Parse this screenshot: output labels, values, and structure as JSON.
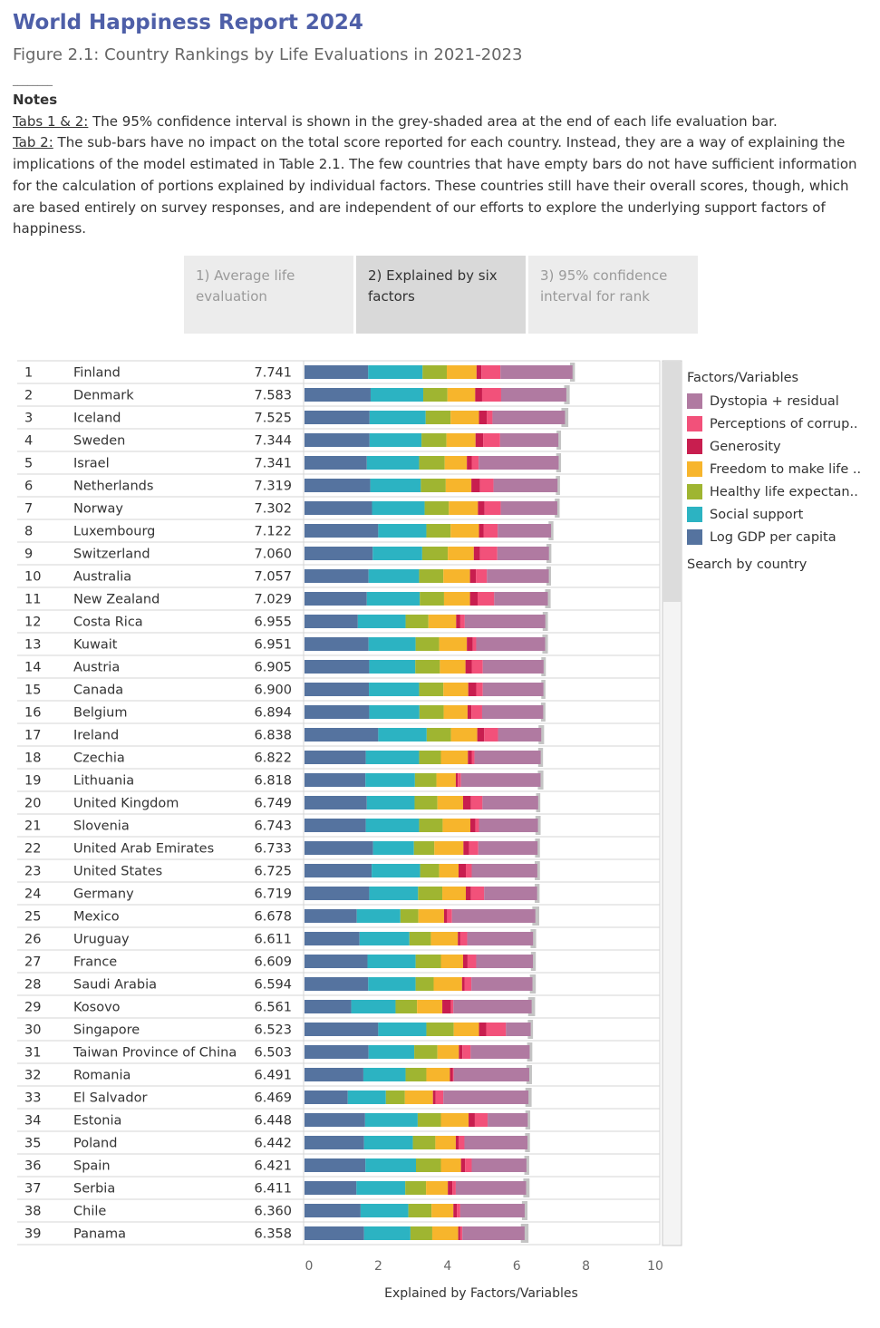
{
  "header": {
    "title": "World Happiness Report 2024",
    "subtitle": "Figure 2.1: Country Rankings by Life Evaluations in 2021-2023",
    "separator": "________"
  },
  "notes": {
    "title": "Notes",
    "tab12_label": "Tabs 1 & 2:",
    "tab12_text": " The 95% confidence interval is shown in the grey-shaded area at the end of each life evaluation bar.",
    "tab2_label": "Tab 2:",
    "tab2_text": " The sub-bars have no impact on the total score reported for each country. Instead, they are a way of explaining the implications of the model estimated in Table 2.1. The few countries that have empty bars do not have sufficient information for the calculation of portions explained by individual factors. These countries still have their overall scores, though, which are based entirely on survey responses, and are independent of our efforts to explore the underlying support factors of happiness."
  },
  "tabs": [
    {
      "label": "1) Average life evaluation",
      "active": false
    },
    {
      "label": "2) Explained by six factors",
      "active": true
    },
    {
      "label": "3) 95% confidence interval for rank",
      "active": false
    }
  ],
  "legend": {
    "title": "Factors/Variables",
    "search": "Search by country"
  },
  "colors": {
    "gdp": "#55739f",
    "social": "#2cb3c2",
    "health": "#9fb531",
    "freedom": "#f7b52c",
    "generosity": "#c81e4f",
    "corruption": "#f2517a",
    "dystopia": "#b07aa1",
    "ci": "#c4c4c4"
  },
  "chart_data": {
    "type": "bar",
    "orientation": "horizontal",
    "stacked": true,
    "xlabel": "Explained by Factors/Variables",
    "xlim": [
      0,
      10
    ],
    "xticks": [
      0,
      2,
      4,
      6,
      8,
      10
    ],
    "series_names": [
      "Log GDP per capita",
      "Social support",
      "Healthy life expectan..",
      "Freedom to make life ..",
      "Generosity",
      "Perceptions of corrup..",
      "Dystopia + residual"
    ],
    "series_keys": [
      "gdp",
      "social",
      "health",
      "freedom",
      "generosity",
      "corruption",
      "dystopia"
    ],
    "rows": [
      {
        "rank": "1",
        "country": "Finland",
        "score": "7.741",
        "v": [
          1.84,
          1.57,
          0.7,
          0.86,
          0.14,
          0.55,
          2.082
        ],
        "ci": [
          7.67,
          7.81
        ]
      },
      {
        "rank": "2",
        "country": "Denmark",
        "score": "7.583",
        "v": [
          1.91,
          1.52,
          0.7,
          0.8,
          0.2,
          0.55,
          1.883
        ],
        "ci": [
          7.5,
          7.66
        ]
      },
      {
        "rank": "3",
        "country": "Iceland",
        "score": "7.525",
        "v": [
          1.88,
          1.62,
          0.72,
          0.82,
          0.23,
          0.16,
          2.095
        ],
        "ci": [
          7.42,
          7.62
        ]
      },
      {
        "rank": "4",
        "country": "Sweden",
        "score": "7.344",
        "v": [
          1.88,
          1.5,
          0.72,
          0.84,
          0.22,
          0.49,
          1.684
        ],
        "ci": [
          7.28,
          7.41
        ]
      },
      {
        "rank": "5",
        "country": "Israel",
        "score": "7.341",
        "v": [
          1.8,
          1.51,
          0.74,
          0.64,
          0.14,
          0.2,
          2.311
        ],
        "ci": [
          7.27,
          7.41
        ]
      },
      {
        "rank": "6",
        "country": "Netherlands",
        "score": "7.319",
        "v": [
          1.9,
          1.46,
          0.72,
          0.74,
          0.25,
          0.39,
          1.849
        ],
        "ci": [
          7.26,
          7.38
        ]
      },
      {
        "rank": "7",
        "country": "Norway",
        "score": "7.302",
        "v": [
          1.95,
          1.52,
          0.7,
          0.84,
          0.19,
          0.47,
          1.632
        ],
        "ci": [
          7.23,
          7.37
        ]
      },
      {
        "rank": "8",
        "country": "Luxembourg",
        "score": "7.122",
        "v": [
          2.13,
          1.39,
          0.7,
          0.82,
          0.13,
          0.41,
          1.542
        ],
        "ci": [
          7.05,
          7.19
        ]
      },
      {
        "rank": "9",
        "country": "Switzerland",
        "score": "7.060",
        "v": [
          1.97,
          1.43,
          0.74,
          0.75,
          0.18,
          0.5,
          1.49
        ],
        "ci": [
          6.99,
          7.13
        ]
      },
      {
        "rank": "10",
        "country": "Australia",
        "score": "7.057",
        "v": [
          1.85,
          1.46,
          0.7,
          0.77,
          0.17,
          0.32,
          1.787
        ],
        "ci": [
          6.99,
          7.12
        ]
      },
      {
        "rank": "11",
        "country": "New Zealand",
        "score": "7.029",
        "v": [
          1.8,
          1.53,
          0.7,
          0.75,
          0.22,
          0.48,
          1.549
        ],
        "ci": [
          6.95,
          7.11
        ]
      },
      {
        "rank": "12",
        "country": "Costa Rica",
        "score": "6.955",
        "v": [
          1.54,
          1.38,
          0.66,
          0.8,
          0.12,
          0.13,
          2.325
        ],
        "ci": [
          6.88,
          7.03
        ]
      },
      {
        "rank": "13",
        "country": "Kuwait",
        "score": "6.951",
        "v": [
          1.85,
          1.36,
          0.68,
          0.8,
          0.17,
          0.1,
          1.991
        ],
        "ci": [
          6.87,
          7.03
        ]
      },
      {
        "rank": "14",
        "country": "Austria",
        "score": "6.905",
        "v": [
          1.87,
          1.33,
          0.71,
          0.74,
          0.18,
          0.32,
          1.755
        ],
        "ci": [
          6.84,
          6.97
        ]
      },
      {
        "rank": "15",
        "country": "Canada",
        "score": "6.900",
        "v": [
          1.86,
          1.45,
          0.7,
          0.72,
          0.23,
          0.19,
          1.75
        ],
        "ci": [
          6.84,
          6.96
        ]
      },
      {
        "rank": "16",
        "country": "Belgium",
        "score": "6.894",
        "v": [
          1.87,
          1.45,
          0.7,
          0.69,
          0.11,
          0.31,
          1.764
        ],
        "ci": [
          6.83,
          6.96
        ]
      },
      {
        "rank": "17",
        "country": "Ireland",
        "score": "6.838",
        "v": [
          2.13,
          1.4,
          0.7,
          0.76,
          0.2,
          0.4,
          1.248
        ],
        "ci": [
          6.76,
          6.92
        ]
      },
      {
        "rank": "18",
        "country": "Czechia",
        "score": "6.822",
        "v": [
          1.77,
          1.54,
          0.63,
          0.78,
          0.11,
          0.08,
          1.912
        ],
        "ci": [
          6.75,
          6.89
        ]
      },
      {
        "rank": "19",
        "country": "Lithuania",
        "score": "6.818",
        "v": [
          1.76,
          1.43,
          0.62,
          0.56,
          0.06,
          0.09,
          2.298
        ],
        "ci": [
          6.74,
          6.9
        ]
      },
      {
        "rank": "20",
        "country": "United Kingdom",
        "score": "6.749",
        "v": [
          1.8,
          1.38,
          0.66,
          0.74,
          0.23,
          0.33,
          1.609
        ],
        "ci": [
          6.69,
          6.81
        ]
      },
      {
        "rank": "21",
        "country": "Slovenia",
        "score": "6.743",
        "v": [
          1.77,
          1.54,
          0.68,
          0.8,
          0.15,
          0.1,
          1.703
        ],
        "ci": [
          6.67,
          6.82
        ]
      },
      {
        "rank": "22",
        "country": "United Arab Emirates",
        "score": "6.733",
        "v": [
          1.98,
          1.18,
          0.59,
          0.84,
          0.16,
          0.27,
          1.713
        ],
        "ci": [
          6.66,
          6.8
        ]
      },
      {
        "rank": "23",
        "country": "United States",
        "score": "6.725",
        "v": [
          1.94,
          1.4,
          0.55,
          0.56,
          0.21,
          0.17,
          1.895
        ],
        "ci": [
          6.65,
          6.8
        ]
      },
      {
        "rank": "24",
        "country": "Germany",
        "score": "6.719",
        "v": [
          1.87,
          1.41,
          0.7,
          0.68,
          0.15,
          0.38,
          1.529
        ],
        "ci": [
          6.65,
          6.79
        ]
      },
      {
        "rank": "25",
        "country": "Mexico",
        "score": "6.678",
        "v": [
          1.51,
          1.26,
          0.52,
          0.74,
          0.09,
          0.14,
          2.408
        ],
        "ci": [
          6.58,
          6.78
        ]
      },
      {
        "rank": "26",
        "country": "Uruguay",
        "score": "6.611",
        "v": [
          1.59,
          1.44,
          0.62,
          0.78,
          0.07,
          0.2,
          1.901
        ],
        "ci": [
          6.53,
          6.69
        ]
      },
      {
        "rank": "27",
        "country": "France",
        "score": "6.609",
        "v": [
          1.82,
          1.39,
          0.73,
          0.64,
          0.13,
          0.25,
          1.639
        ],
        "ci": [
          6.54,
          6.68
        ]
      },
      {
        "rank": "28",
        "country": "Saudi Arabia",
        "score": "6.594",
        "v": [
          1.84,
          1.37,
          0.52,
          0.82,
          0.07,
          0.2,
          1.764
        ],
        "ci": [
          6.51,
          6.68
        ]
      },
      {
        "rank": "29",
        "country": "Kosovo",
        "score": "6.561",
        "v": [
          1.35,
          1.28,
          0.62,
          0.73,
          0.25,
          0.07,
          2.261
        ],
        "ci": [
          6.46,
          6.66
        ]
      },
      {
        "rank": "30",
        "country": "Singapore",
        "score": "6.523",
        "v": [
          2.13,
          1.39,
          0.79,
          0.73,
          0.21,
          0.57,
          0.713
        ],
        "ci": [
          6.45,
          6.6
        ]
      },
      {
        "rank": "31",
        "country": "Taiwan Province of China",
        "score": "6.503",
        "v": [
          1.85,
          1.32,
          0.67,
          0.62,
          0.1,
          0.24,
          1.703
        ],
        "ci": [
          6.43,
          6.58
        ]
      },
      {
        "rank": "32",
        "country": "Romania",
        "score": "6.491",
        "v": [
          1.7,
          1.22,
          0.6,
          0.68,
          0.08,
          0.03,
          2.181
        ],
        "ci": [
          6.41,
          6.57
        ]
      },
      {
        "rank": "33",
        "country": "El Salvador",
        "score": "6.469",
        "v": [
          1.25,
          1.1,
          0.55,
          0.81,
          0.08,
          0.22,
          2.459
        ],
        "ci": [
          6.38,
          6.56
        ]
      },
      {
        "rank": "34",
        "country": "Estonia",
        "score": "6.448",
        "v": [
          1.75,
          1.52,
          0.67,
          0.8,
          0.18,
          0.37,
          1.158
        ],
        "ci": [
          6.38,
          6.52
        ]
      },
      {
        "rank": "35",
        "country": "Poland",
        "score": "6.442",
        "v": [
          1.72,
          1.41,
          0.65,
          0.59,
          0.08,
          0.17,
          1.822
        ],
        "ci": [
          6.37,
          6.51
        ]
      },
      {
        "rank": "36",
        "country": "Spain",
        "score": "6.421",
        "v": [
          1.76,
          1.46,
          0.72,
          0.58,
          0.12,
          0.19,
          1.581
        ],
        "ci": [
          6.35,
          6.49
        ]
      },
      {
        "rank": "37",
        "country": "Serbia",
        "score": "6.411",
        "v": [
          1.5,
          1.41,
          0.6,
          0.63,
          0.13,
          0.1,
          2.031
        ],
        "ci": [
          6.32,
          6.5
        ]
      },
      {
        "rank": "38",
        "country": "Chile",
        "score": "6.360",
        "v": [
          1.62,
          1.38,
          0.67,
          0.63,
          0.1,
          0.1,
          1.86
        ],
        "ci": [
          6.28,
          6.44
        ]
      },
      {
        "rank": "39",
        "country": "Panama",
        "score": "6.358",
        "v": [
          1.72,
          1.34,
          0.63,
          0.75,
          0.06,
          0.06,
          1.798
        ],
        "ci": [
          6.25,
          6.47
        ]
      }
    ]
  }
}
